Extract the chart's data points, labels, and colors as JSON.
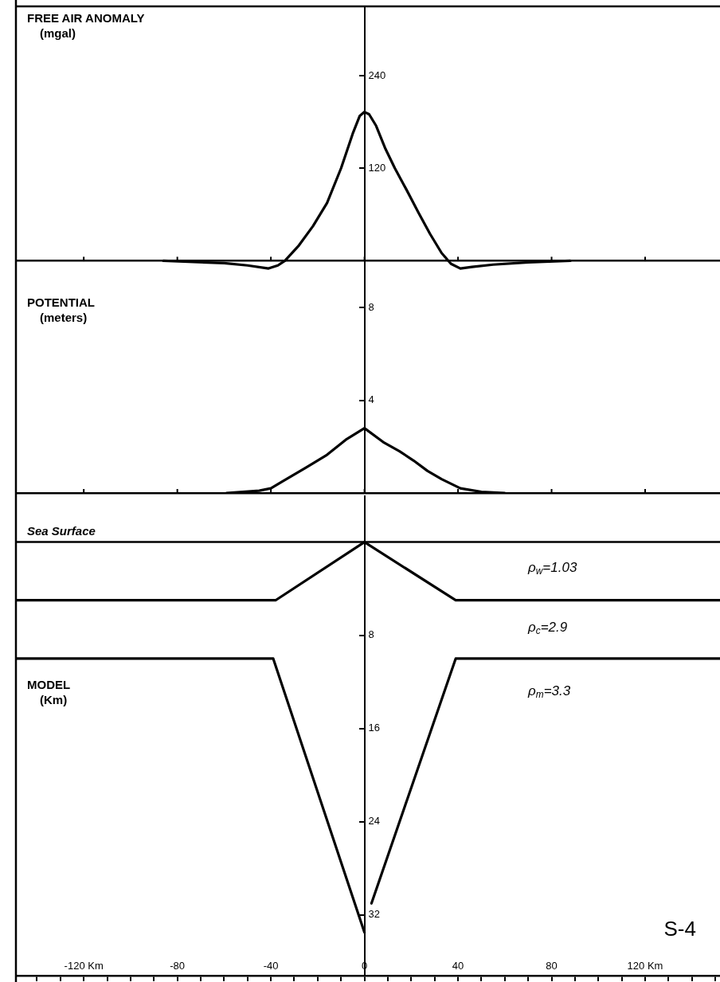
{
  "chart_data": [
    {
      "type": "line",
      "ylabel": "FREE AIR ANOMALY (mgal)",
      "xlim": [
        -149,
        152
      ],
      "ylim": [
        -13,
        330
      ],
      "xticks": [
        {
          "value": -120,
          "label": null
        },
        {
          "value": -80,
          "label": null
        },
        {
          "value": -40,
          "label": null
        },
        {
          "value": 0,
          "label": null
        },
        {
          "value": 40,
          "label": null
        },
        {
          "value": 80,
          "label": null
        },
        {
          "value": 120,
          "label": null
        }
      ],
      "yticks": [
        120,
        240
      ],
      "tick_labels": "y",
      "marker": "none",
      "line_style": "solid",
      "series": [
        {
          "color": "#000000",
          "x": [
            -86,
            -60,
            -50,
            -41,
            -37,
            -34,
            -28,
            -22,
            -16,
            -10,
            -5,
            -2,
            0,
            2,
            5,
            9,
            13,
            18,
            23,
            28,
            33,
            37,
            41,
            46,
            55,
            70,
            88
          ],
          "values": [
            0,
            -3,
            -6,
            -10,
            -6,
            0,
            20,
            45,
            75,
            120,
            165,
            188,
            193,
            190,
            175,
            145,
            120,
            92,
            63,
            35,
            10,
            -4,
            -10,
            -8,
            -5,
            -2,
            0
          ]
        }
      ]
    },
    {
      "type": "line",
      "ylabel": "POTENTIAL (meters)",
      "xlim": [
        -149,
        152
      ],
      "ylim": [
        0,
        9.6
      ],
      "xticks": [
        {
          "value": -120,
          "label": null
        },
        {
          "value": -80,
          "label": null
        },
        {
          "value": -40,
          "label": null
        },
        {
          "value": 0,
          "label": null
        },
        {
          "value": 40,
          "label": null
        },
        {
          "value": 80,
          "label": null
        },
        {
          "value": 120,
          "label": null
        }
      ],
      "yticks": [
        4,
        8
      ],
      "tick_labels": "y",
      "marker": "none",
      "line_style": "solid",
      "series": [
        {
          "color": "#000000",
          "x": [
            -59,
            -45,
            -40,
            -35,
            -25,
            -16,
            -8,
            0,
            8,
            15,
            21,
            27,
            33,
            41,
            50,
            60
          ],
          "values": [
            0,
            0.1,
            0.2,
            0.5,
            1.1,
            1.65,
            2.3,
            2.8,
            2.2,
            1.8,
            1.4,
            0.95,
            0.6,
            0.2,
            0.05,
            0
          ]
        }
      ]
    },
    {
      "type": "line",
      "ylabel": "MODEL (Km)",
      "xlim": [
        -149,
        152
      ],
      "ylim": [
        37.2,
        -4
      ],
      "xticks": [
        {
          "value": -140,
          "label": null
        },
        {
          "value": -130,
          "label": null
        },
        {
          "value": -120,
          "label": "-120 Km"
        },
        {
          "value": -110,
          "label": null
        },
        {
          "value": -100,
          "label": null
        },
        {
          "value": -90,
          "label": null
        },
        {
          "value": -80,
          "label": "-80"
        },
        {
          "value": -70,
          "label": null
        },
        {
          "value": -60,
          "label": null
        },
        {
          "value": -50,
          "label": null
        },
        {
          "value": -40,
          "label": "-40"
        },
        {
          "value": -30,
          "label": null
        },
        {
          "value": -20,
          "label": null
        },
        {
          "value": -10,
          "label": null
        },
        {
          "value": 0,
          "label": "0"
        },
        {
          "value": 10,
          "label": null
        },
        {
          "value": 20,
          "label": null
        },
        {
          "value": 30,
          "label": null
        },
        {
          "value": 40,
          "label": "40"
        },
        {
          "value": 50,
          "label": null
        },
        {
          "value": 60,
          "label": null
        },
        {
          "value": 70,
          "label": null
        },
        {
          "value": 80,
          "label": "80"
        },
        {
          "value": 90,
          "label": null
        },
        {
          "value": 100,
          "label": null
        },
        {
          "value": 110,
          "label": null
        },
        {
          "value": 120,
          "label": "120 Km"
        },
        {
          "value": 130,
          "label": null
        },
        {
          "value": 140,
          "label": null
        },
        {
          "value": 150,
          "label": null
        }
      ],
      "yticks": [
        8,
        16,
        24,
        32
      ],
      "marker": "none",
      "line_style": "solid",
      "ref_lines": [
        {
          "axis": "y",
          "value": 0,
          "label": "Sea Surface"
        }
      ],
      "annotations": [
        "ρ$_{w}$=1.03",
        "ρ$_{c}$=2.9",
        "ρ$_{m}$=3.3",
        "S-4"
      ],
      "series": [
        {
          "color": "#000000",
          "x": [
            -149,
            -38,
            0,
            39,
            152
          ],
          "values": [
            5,
            5,
            0,
            5,
            5
          ]
        },
        {
          "color": "#000000",
          "x": [
            -149,
            -39,
            0,
            1.5,
            3,
            39,
            152
          ],
          "values": [
            10,
            10,
            33.5,
            null,
            31,
            10,
            10
          ]
        }
      ]
    }
  ]
}
